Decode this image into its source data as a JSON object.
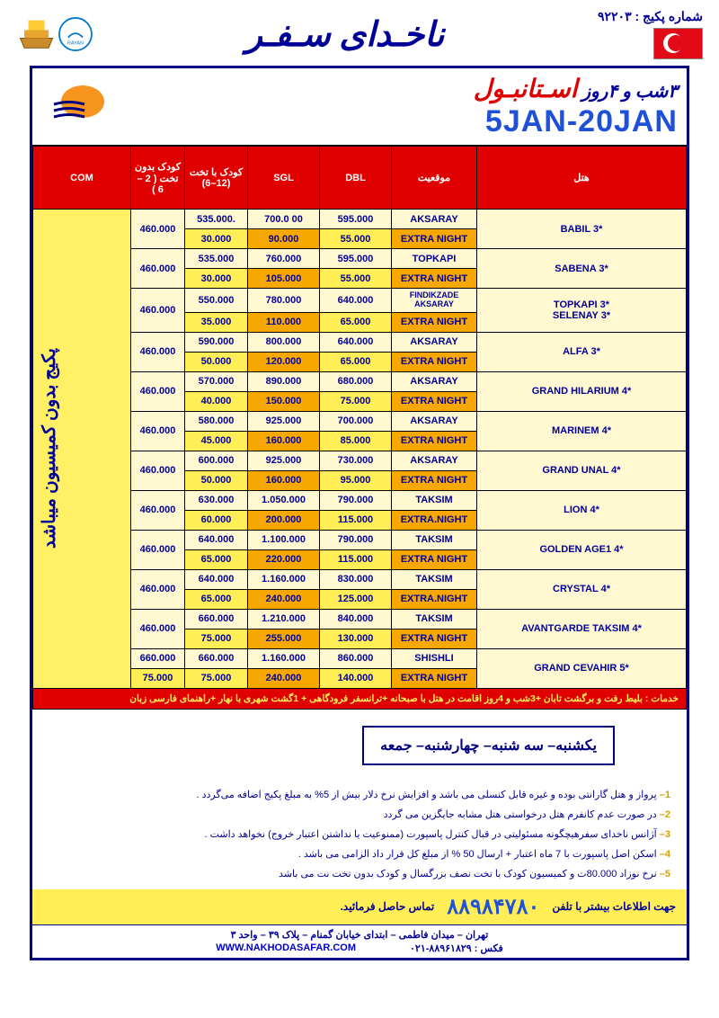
{
  "header": {
    "package_number_label": "شماره پکیج : ۹۲۲۰۳",
    "brand": "ناخـدای سـفـر"
  },
  "banner": {
    "nights": "۳شب و ۴روز ",
    "city": "اسـتانبـول",
    "dates": "5JAN-20JAN"
  },
  "columns": {
    "com": "COM",
    "child_nobed": "کودک بدون تخت ( 2 – 6 )",
    "child_bed": "کودک با تخت (12–6)",
    "sgl": "SGL",
    "dbl": "DBL",
    "location": "موقعیت",
    "hotel": "هتل"
  },
  "vertical_label": "پکیج بدون کمیسیون میباشد",
  "hotels": [
    {
      "name": "BABIL 3*",
      "child_nb": "460.000",
      "r1": {
        "child_wb": "535.000.",
        "sgl": "700.0 00",
        "dbl": "595.000",
        "loc": "AKSARAY"
      },
      "r2": {
        "child_wb": "30.000",
        "sgl": "90.000",
        "dbl": "55.000",
        "loc": "EXTRA NIGHT"
      }
    },
    {
      "name": "SABENA 3*",
      "child_nb": "460.000",
      "r1": {
        "child_wb": "535.000",
        "sgl": "760.000",
        "dbl": "595.000",
        "loc": "TOPKAPI"
      },
      "r2": {
        "child_wb": "30.000",
        "sgl": "105.000",
        "dbl": "55.000",
        "loc": "EXTRA NIGHT"
      }
    },
    {
      "name": "TOPKAPI 3*\nSELENAY 3*",
      "child_nb": "460.000",
      "r1": {
        "child_wb": "550.000",
        "sgl": "780.000",
        "dbl": "640.000",
        "loc": "FINDIKZADE AKSARAY"
      },
      "r2": {
        "child_wb": "35.000",
        "sgl": "110.000",
        "dbl": "65.000",
        "loc": "EXTRA NIGHT"
      }
    },
    {
      "name": "ALFA 3*",
      "child_nb": "460.000",
      "r1": {
        "child_wb": "590.000",
        "sgl": "800.000",
        "dbl": "640.000",
        "loc": "AKSARAY"
      },
      "r2": {
        "child_wb": "50.000",
        "sgl": "120.000",
        "dbl": "65.000",
        "loc": "EXTRA NIGHT"
      }
    },
    {
      "name": "GRAND HILARIUM 4*",
      "child_nb": "460.000",
      "r1": {
        "child_wb": "570.000",
        "sgl": "890.000",
        "dbl": "680.000",
        "loc": "AKSARAY"
      },
      "r2": {
        "child_wb": "40.000",
        "sgl": "150.000",
        "dbl": "75.000",
        "loc": "EXTRA NIGHT"
      }
    },
    {
      "name": "MARINEM 4*",
      "child_nb": "460.000",
      "r1": {
        "child_wb": "580.000",
        "sgl": "925.000",
        "dbl": "700.000",
        "loc": "AKSARAY"
      },
      "r2": {
        "child_wb": "45.000",
        "sgl": "160.000",
        "dbl": "85.000",
        "loc": "EXTRA NIGHT"
      }
    },
    {
      "name": "GRAND UNAL 4*",
      "child_nb": "460.000",
      "r1": {
        "child_wb": "600.000",
        "sgl": "925.000",
        "dbl": "730.000",
        "loc": "AKSARAY"
      },
      "r2": {
        "child_wb": "50.000",
        "sgl": "160.000",
        "dbl": "95.000",
        "loc": "EXTRA NIGHT"
      }
    },
    {
      "name": "LION 4*",
      "child_nb": "460.000",
      "r1": {
        "child_wb": "630.000",
        "sgl": "1.050.000",
        "dbl": "790.000",
        "loc": "TAKSIM"
      },
      "r2": {
        "child_wb": "60.000",
        "sgl": "200.000",
        "dbl": "115.000",
        "loc": "EXTRA.NIGHT"
      }
    },
    {
      "name": "GOLDEN AGE1  4*",
      "child_nb": "460.000",
      "r1": {
        "child_wb": "640.000",
        "sgl": "1.100.000",
        "dbl": "790.000",
        "loc": "TAKSIM"
      },
      "r2": {
        "child_wb": "65.000",
        "sgl": "220.000",
        "dbl": "115.000",
        "loc": "EXTRA NIGHT"
      }
    },
    {
      "name": "CRYSTAL 4*",
      "child_nb": "460.000",
      "r1": {
        "child_wb": "640.000",
        "sgl": "1.160.000",
        "dbl": "830.000",
        "loc": "TAKSIM"
      },
      "r2": {
        "child_wb": "65.000",
        "sgl": "240.000",
        "dbl": "125.000",
        "loc": "EXTRA.NIGHT"
      }
    },
    {
      "name": "AVANTGARDE TAKSIM 4*",
      "child_nb": "460.000",
      "r1": {
        "child_wb": "660.000",
        "sgl": "1.210.000",
        "dbl": "840.000",
        "loc": "TAKSIM"
      },
      "r2": {
        "child_wb": "75.000",
        "sgl": "255.000",
        "dbl": "130.000",
        "loc": "EXTRA NIGHT"
      }
    },
    {
      "name": "GRAND CEVAHIR 5*",
      "child_nb_split": true,
      "r1": {
        "child_nb": "660.000",
        "child_wb": "660.000",
        "sgl": "1.160.000",
        "dbl": "860.000",
        "loc": "SHISHLI"
      },
      "r2": {
        "child_nb": "75.000",
        "child_wb": "75.000",
        "sgl": "240.000",
        "dbl": "140.000",
        "loc": "EXTRA NIGHT"
      }
    }
  ],
  "services": "خدمات :  بلیط رفت و برگشت تابان +3شب و 4روز اقامت در هتل با صبحانه +ترانسفر فرودگاهی + 1گشت شهری با نهار +راهنمای فارسی زبان",
  "days_box": "یکشنبه– سه شنبه– چهارشنبه– جمعه",
  "notes": [
    "1– پرواز و هتل گارانتی بوده و غیره قابل کنسلی می باشد و افزایش نرخ دلار بیش از 5%  به مبلغ پکیج اضافه می‌گردد .",
    "2– در صورت عدم کانفرم هتل درخواستی هتل مشابه جایگزین می گردد",
    "3– آژانس ناخدای سفرهیچگونه مسئولیتی در قبال کنترل پاسپورت (ممنوعیت یا نداشتن اعتبار خروج) نخواهد داشت .",
    "4– اسکن اصل پاسپورت با 7 ماه اعتبار + ارسال 50 % از مبلغ کل قرار داد الزامی می باشد .",
    "5– نرخ نوزاد 80.000ت و کمیسیون کودک با تخت نصف بزرگسال و کودک بدون تخت نت می باشد"
  ],
  "contact": {
    "more_info": "جهت اطلاعات بیشتر با تلفن",
    "phone": "۸۸۹۸۴۷۸۰",
    "call_us": "تماس حاصل فرمائید."
  },
  "footer": {
    "address": "تهران – میدان فاطمی – ابتدای خیابان گمنام – پلاک ۳۹ – واحد ۳",
    "fax": "فکس :  ۸۸۹۶۱۸۲۹-۰۲۱",
    "www": "WWW.NAKHODASAFAR.COM"
  },
  "colors": {
    "header_red": "#e00000",
    "cream": "#fff8d0",
    "orange": "#f7a800",
    "yellow": "#ffee55",
    "navy": "#000099"
  }
}
